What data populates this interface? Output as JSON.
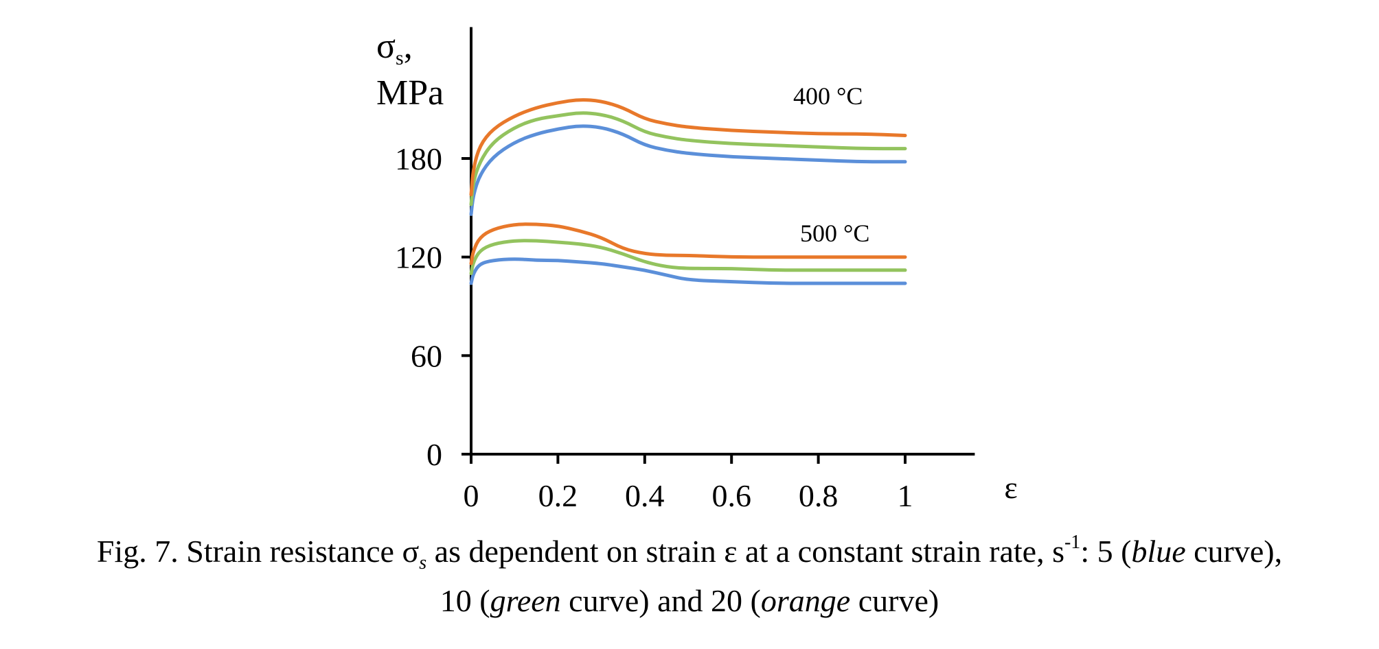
{
  "chart_data": {
    "type": "line",
    "ylabel_symbol": "σ",
    "ylabel_sub": "s",
    "ylabel_comma": ",",
    "ylabel_unit": "MPa",
    "xlabel": "ε",
    "xlim": [
      0,
      1.2
    ],
    "ylim": [
      0,
      260
    ],
    "xticks": [
      0,
      0.2,
      0.4,
      0.6,
      0.8,
      1
    ],
    "xtick_labels": [
      "0",
      "0.2",
      "0.4",
      "0.6",
      "0.8",
      "1"
    ],
    "yticks": [
      0,
      60,
      120,
      180
    ],
    "ytick_labels": [
      "0",
      "60",
      "120",
      "180"
    ],
    "grid": false,
    "annotations": [
      {
        "text": "400 °C",
        "x": 0.79,
        "y": 219
      },
      {
        "text": "500 °C",
        "x": 0.81,
        "y": 134
      }
    ],
    "series": [
      {
        "group": "400 °C",
        "color": "#5B8FD9",
        "x": [
          0,
          0.005,
          0.02,
          0.05,
          0.1,
          0.15,
          0.2,
          0.25,
          0.3,
          0.35,
          0.4,
          0.45,
          0.5,
          0.6,
          0.7,
          0.8,
          0.9,
          1.0
        ],
        "y": [
          146,
          158,
          170,
          181,
          190,
          195,
          198,
          200,
          199,
          195,
          188,
          185,
          183,
          181,
          180,
          179,
          178,
          178
        ]
      },
      {
        "group": "400 °C",
        "color": "#93C35E",
        "x": [
          0,
          0.005,
          0.02,
          0.05,
          0.1,
          0.15,
          0.2,
          0.25,
          0.3,
          0.35,
          0.4,
          0.45,
          0.5,
          0.6,
          0.7,
          0.8,
          0.9,
          1.0
        ],
        "y": [
          152,
          166,
          178,
          190,
          199,
          204,
          206,
          208,
          207,
          203,
          196,
          193,
          191,
          189,
          188,
          187,
          186,
          186
        ]
      },
      {
        "group": "400 °C",
        "color": "#E8782A",
        "x": [
          0,
          0.005,
          0.02,
          0.05,
          0.1,
          0.15,
          0.2,
          0.25,
          0.3,
          0.35,
          0.4,
          0.45,
          0.5,
          0.6,
          0.7,
          0.8,
          0.9,
          1.0
        ],
        "y": [
          158,
          174,
          188,
          198,
          206,
          211,
          214,
          216,
          215,
          211,
          204,
          201,
          199,
          197,
          196,
          195,
          195,
          194
        ]
      },
      {
        "group": "500 °C",
        "color": "#5B8FD9",
        "x": [
          0,
          0.005,
          0.02,
          0.05,
          0.1,
          0.15,
          0.2,
          0.25,
          0.3,
          0.35,
          0.4,
          0.45,
          0.5,
          0.6,
          0.7,
          0.8,
          0.9,
          1.0
        ],
        "y": [
          104,
          110,
          116,
          118,
          119,
          118,
          118,
          117,
          116,
          114,
          112,
          109,
          106,
          105,
          104,
          104,
          104,
          104
        ]
      },
      {
        "group": "500 °C",
        "color": "#93C35E",
        "x": [
          0,
          0.005,
          0.02,
          0.05,
          0.1,
          0.15,
          0.2,
          0.25,
          0.3,
          0.35,
          0.4,
          0.45,
          0.5,
          0.6,
          0.7,
          0.8,
          0.9,
          1.0
        ],
        "y": [
          110,
          117,
          124,
          128,
          130,
          130,
          129,
          128,
          126,
          122,
          117,
          114,
          113,
          113,
          112,
          112,
          112,
          112
        ]
      },
      {
        "group": "500 °C",
        "color": "#E8782A",
        "x": [
          0,
          0.005,
          0.02,
          0.05,
          0.1,
          0.15,
          0.2,
          0.25,
          0.3,
          0.35,
          0.4,
          0.45,
          0.5,
          0.6,
          0.7,
          0.8,
          0.9,
          1.0
        ],
        "y": [
          116,
          124,
          132,
          137,
          140,
          140,
          139,
          136,
          132,
          125,
          122,
          121,
          121,
          120,
          120,
          120,
          120,
          120
        ]
      }
    ]
  },
  "caption": {
    "line1_a": "Fig. 7. Strain resistance σ",
    "line1_sub": "s",
    "line1_b": " as dependent on strain ε at a constant strain rate, s",
    "line1_sup": "-1",
    "line1_c": ": 5 (",
    "blue_word": "blue",
    "line1_d": " curve),",
    "line2_a": "10 (",
    "green_word": "green",
    "line2_b": " curve) and 20 (",
    "orange_word": "orange",
    "line2_c": " curve)"
  }
}
